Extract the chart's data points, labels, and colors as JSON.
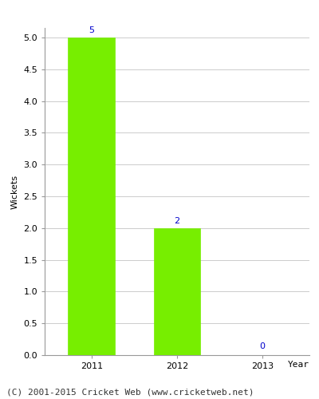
{
  "categories": [
    "2011",
    "2012",
    "2013"
  ],
  "values": [
    5,
    2,
    0
  ],
  "bar_color": "#77ee00",
  "bar_edge_color": "#77ee00",
  "label_color": "#0000cc",
  "label_fontsize": 8,
  "ylabel": "Wickets",
  "xlabel": "Year",
  "ylim": [
    0,
    5.15
  ],
  "yticks": [
    0.0,
    0.5,
    1.0,
    1.5,
    2.0,
    2.5,
    3.0,
    3.5,
    4.0,
    4.5,
    5.0
  ],
  "grid_color": "#cccccc",
  "plot_bg_color": "#ffffff",
  "fig_bg_color": "#ffffff",
  "footer_text": "(C) 2001-2015 Cricket Web (www.cricketweb.net)",
  "footer_fontsize": 8,
  "axis_label_fontsize": 8,
  "tick_fontsize": 8,
  "bar_width": 0.55
}
